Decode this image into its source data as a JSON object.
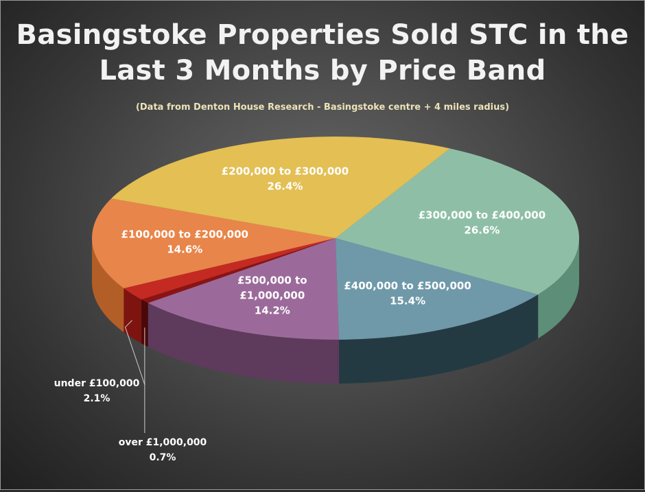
{
  "chart_data": {
    "type": "pie",
    "title": "Basingstoke Properties Sold STC in the Last 3 Months by Price Band",
    "subtitle": "(Data from Denton House Research - Basingstoke centre + 4 miles radius)",
    "slices": [
      {
        "label": "£300,000 to £400,000",
        "value": 26.6,
        "display": "26.6%",
        "color": "#8ebfa6",
        "side": "#5c8e78"
      },
      {
        "label": "£400,000 to £500,000",
        "value": 15.4,
        "display": "15.4%",
        "color": "#6f99a9",
        "side": "#243a42"
      },
      {
        "label": "£500,000 to £1,000,000",
        "value": 14.2,
        "display": "14.2%",
        "color": "#9b6a9a",
        "side": "#5e3a5c"
      },
      {
        "label": "over £1,000,000",
        "value": 0.7,
        "display": "0.7%",
        "color": "#8a1414",
        "side": "#4a0808"
      },
      {
        "label": "under £100,000",
        "value": 2.1,
        "display": "2.1%",
        "color": "#c42a22",
        "side": "#7e1410"
      },
      {
        "label": "£100,000 to £200,000",
        "value": 14.6,
        "display": "14.6%",
        "color": "#e8854a",
        "side": "#b35e26"
      },
      {
        "label": "£200,000 to £300,000",
        "value": 26.4,
        "display": "26.4%",
        "color": "#e3bf54",
        "side": "#a88a30"
      }
    ]
  }
}
